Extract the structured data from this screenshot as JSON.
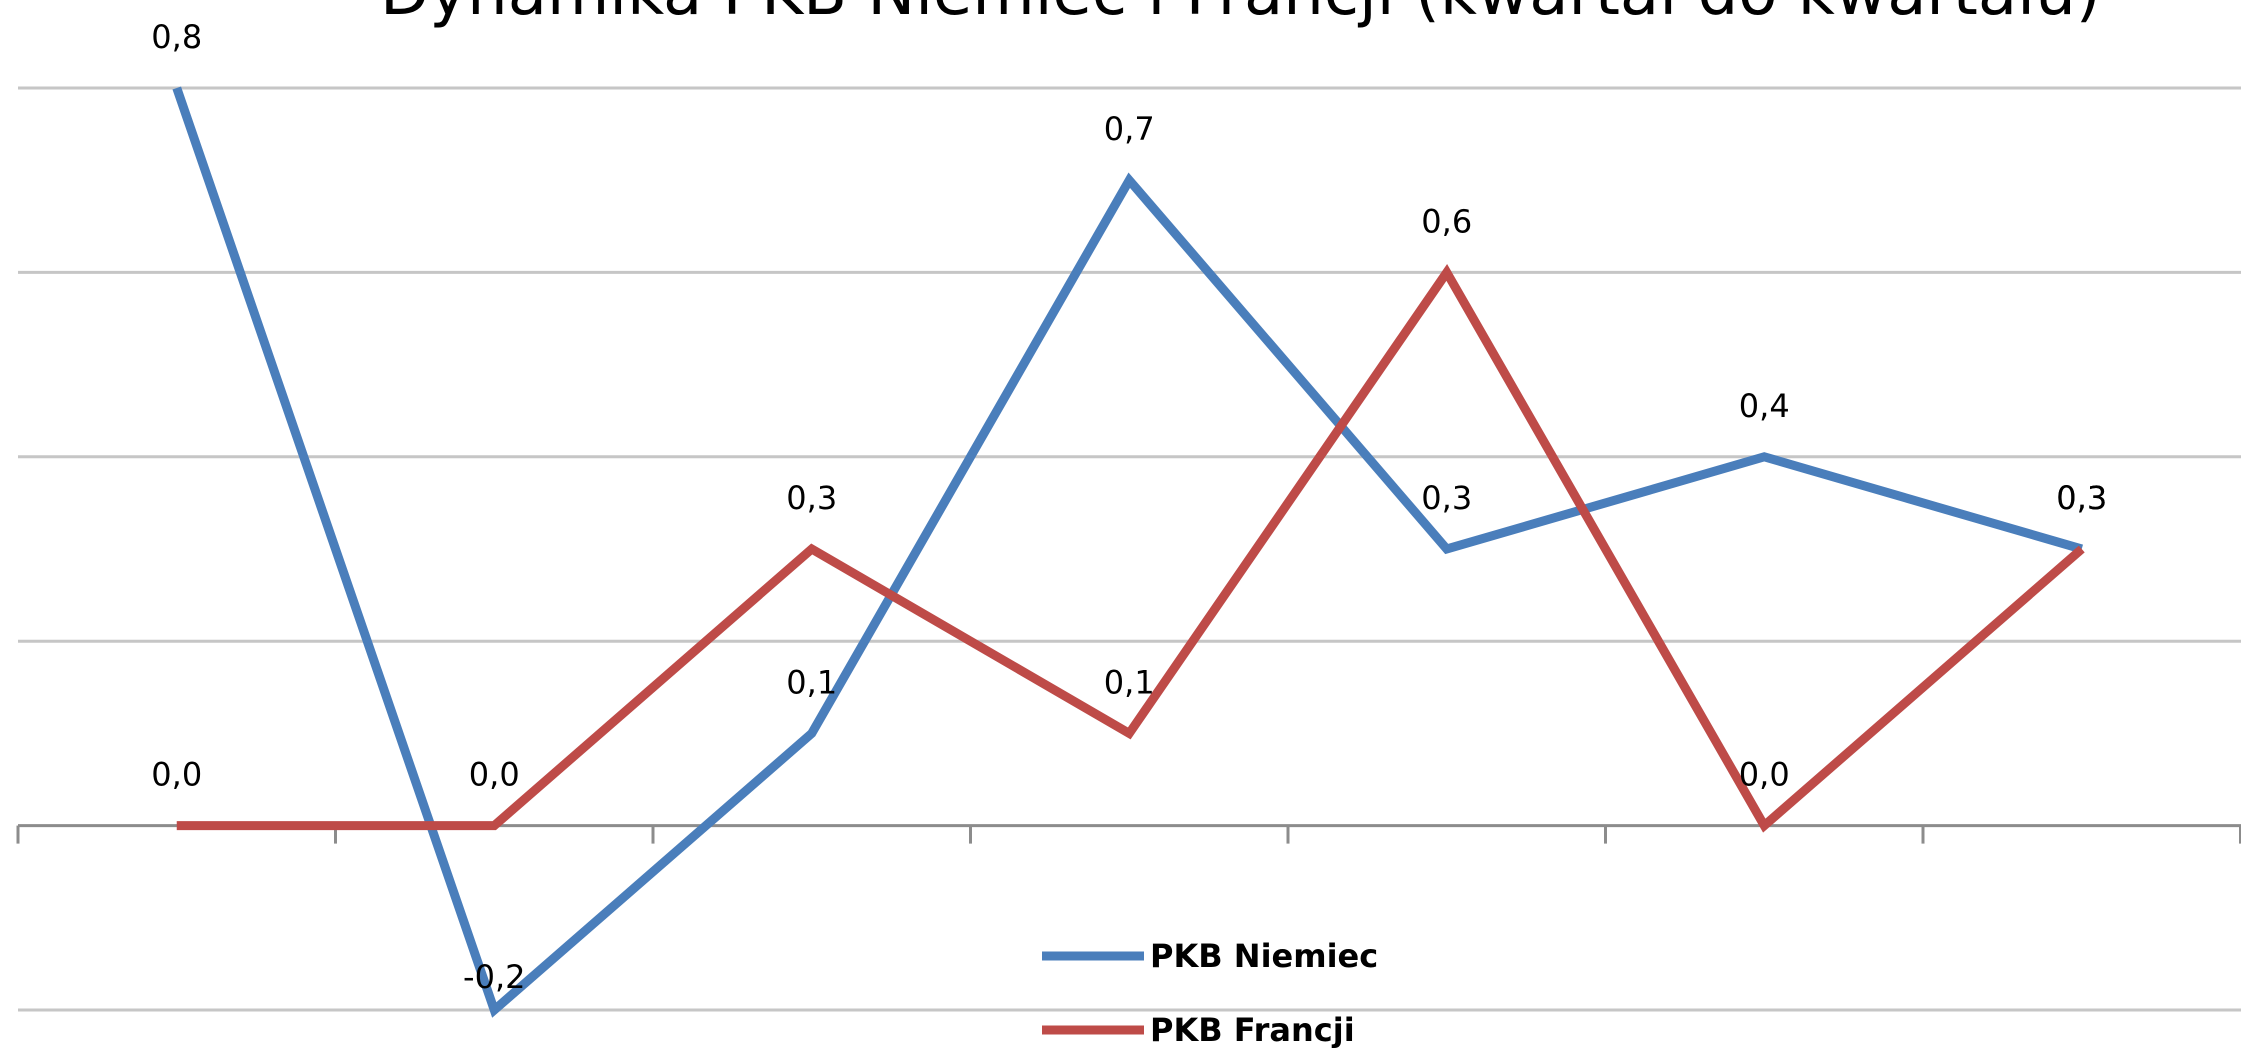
{
  "chart_data": {
    "type": "line",
    "title": "Dynamika PKB Niemiec i Francji (kwartał do kwartału)",
    "xlabel": "",
    "ylabel": "",
    "categories": [
      "",
      "",
      "",
      "",
      "",
      "",
      ""
    ],
    "ylim": [
      -0.2,
      0.8
    ],
    "grid": true,
    "legend_position": "bottom",
    "series": [
      {
        "name": "PKB Niemiec",
        "color": "#4A7EBB",
        "values": [
          0.8,
          -0.2,
          0.1,
          0.7,
          0.3,
          0.4,
          0.3
        ],
        "labels": [
          "0,8",
          "-0,2",
          "0,1",
          "0,7",
          "0,3",
          "0,4",
          "0,3"
        ]
      },
      {
        "name": "PKB Francji",
        "color": "#BE4B48",
        "values": [
          0.0,
          0.0,
          0.3,
          0.1,
          0.6,
          0.0,
          0.3
        ],
        "labels": [
          "0,0",
          "0,0",
          "0,3",
          "0,1",
          "0,6",
          "0,0",
          "0,3"
        ]
      }
    ]
  }
}
